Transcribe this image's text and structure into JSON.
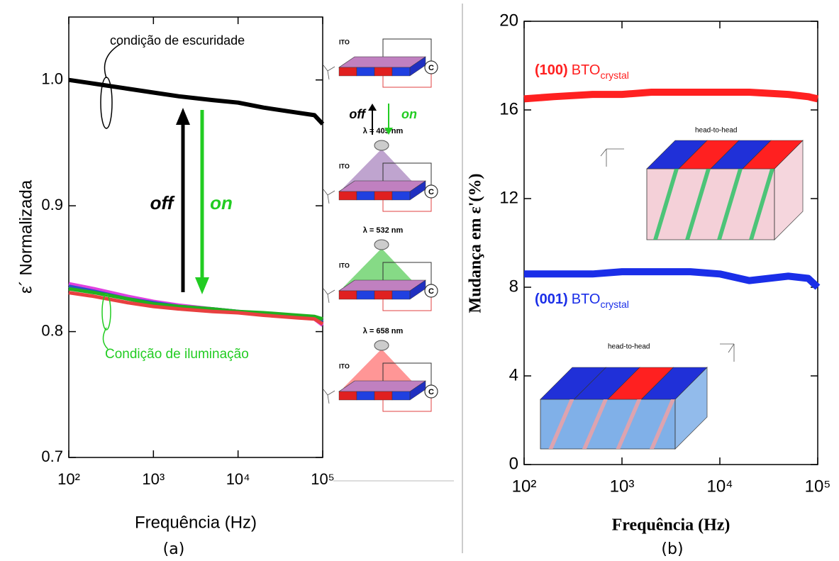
{
  "chart_data": [
    {
      "type": "line",
      "panel_label": "(a)",
      "xlabel": "Frequência (Hz)",
      "ylabel": "ε´ Normalizada",
      "xscale": "log",
      "xlim": [
        100,
        100000
      ],
      "xticks": [
        {
          "value": 100,
          "label": "10²"
        },
        {
          "value": 1000,
          "label": "10³"
        },
        {
          "value": 10000,
          "label": "10⁴"
        },
        {
          "value": 100000,
          "label": "10⁵"
        }
      ],
      "ylim": [
        0.7,
        1.05
      ],
      "yticks": [
        0.7,
        0.8,
        0.9,
        {
          "value": 1,
          "label": "1.0"
        }
      ],
      "x": [
        100,
        200,
        500,
        1000,
        2000,
        5000,
        10000,
        20000,
        50000,
        80000,
        100000
      ],
      "series": [
        {
          "color": "#000000",
          "values": [
            1.0,
            0.997,
            0.993,
            0.99,
            0.987,
            0.984,
            0.982,
            0.978,
            0.974,
            0.972,
            0.965
          ]
        },
        {
          "color": "#e040e0",
          "values": [
            0.838,
            0.834,
            0.828,
            0.824,
            0.821,
            0.818,
            0.816,
            0.814,
            0.812,
            0.81,
            0.805
          ]
        },
        {
          "color": "#2a50c8",
          "values": [
            0.836,
            0.832,
            0.826,
            0.823,
            0.82,
            0.818,
            0.816,
            0.814,
            0.812,
            0.811,
            0.808
          ]
        },
        {
          "color": "#20b020",
          "values": [
            0.834,
            0.831,
            0.826,
            0.822,
            0.82,
            0.818,
            0.816,
            0.815,
            0.813,
            0.812,
            0.81
          ]
        },
        {
          "color": "#e84040",
          "values": [
            0.831,
            0.828,
            0.823,
            0.82,
            0.818,
            0.816,
            0.815,
            0.813,
            0.811,
            0.81,
            0.806
          ]
        }
      ],
      "annotations": [
        {
          "text": "condição de escuridade",
          "color": "#000000"
        },
        {
          "text": "off",
          "color": "#000000"
        },
        {
          "text": "on",
          "color": "#22cc22"
        },
        {
          "text": "Condição de iluminação",
          "color": "#22cc22"
        }
      ],
      "inset": {
        "ito": "ITO",
        "c": "C",
        "off": "off",
        "on": "on",
        "wavelengths": [
          "λ = 405 nm",
          "λ = 532 nm",
          "λ = 658 nm"
        ]
      }
    },
    {
      "type": "line",
      "panel_label": "(b)",
      "xlabel": "Frequência (Hz)",
      "ylabel": "Mudança em ε'(%)",
      "xscale": "log",
      "xlim": [
        100,
        100000
      ],
      "xticks": [
        {
          "value": 100,
          "label": "10²"
        },
        {
          "value": 1000,
          "label": "10³"
        },
        {
          "value": 10000,
          "label": "10⁴"
        },
        {
          "value": 100000,
          "label": "10⁵"
        }
      ],
      "ylim": [
        0,
        20
      ],
      "yticks": [
        0,
        4,
        8,
        12,
        16,
        20
      ],
      "x": [
        100,
        200,
        500,
        1000,
        2000,
        5000,
        10000,
        20000,
        50000,
        80000,
        100000
      ],
      "series": [
        {
          "color": "#ff2020",
          "values": [
            16.5,
            16.6,
            16.7,
            16.7,
            16.8,
            16.8,
            16.8,
            16.8,
            16.7,
            16.6,
            16.5
          ]
        },
        {
          "color": "#1a2ee8",
          "values": [
            8.6,
            8.6,
            8.6,
            8.7,
            8.7,
            8.7,
            8.6,
            8.3,
            8.5,
            8.4,
            8.0
          ]
        }
      ],
      "annotations": [
        {
          "bold": "(100)",
          "text": "BTO",
          "sub": "crystal",
          "color": "#ff2020"
        },
        {
          "bold": "(001)",
          "text": "BTO",
          "sub": "crystal",
          "color": "#1a2ee8"
        }
      ],
      "inset": {
        "head": "head-to-head"
      }
    }
  ]
}
